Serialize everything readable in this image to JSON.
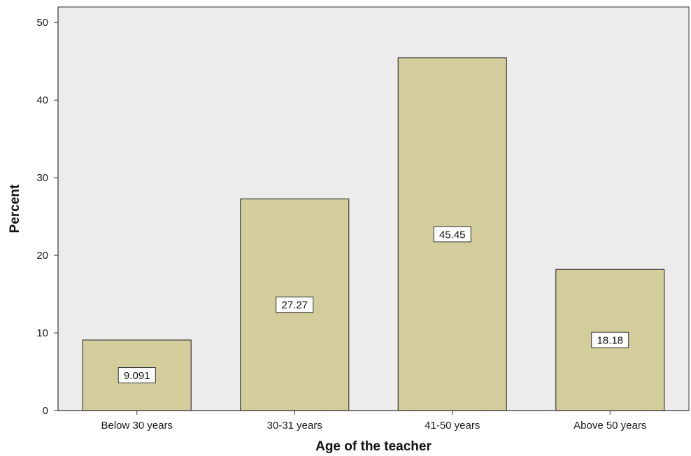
{
  "chart_data": {
    "type": "bar",
    "title": "",
    "xlabel": "Age of the teacher",
    "ylabel": "Percent",
    "categories": [
      "Below 30 years",
      "30-31 years",
      "41-50 years",
      "Above 50 years"
    ],
    "values": [
      9.091,
      27.27,
      45.45,
      18.18
    ],
    "value_labels": [
      "9.091",
      "27.27",
      "45.45",
      "18.18"
    ],
    "ylim": [
      0,
      52
    ],
    "yticks": [
      0,
      10,
      20,
      30,
      40,
      50
    ],
    "ytick_labels": [
      "0",
      "10",
      "20",
      "30",
      "40",
      "50"
    ],
    "grid": false,
    "legend": "none"
  },
  "colors": {
    "plot_background": "#ececec",
    "bar_fill": "#d3cd9b",
    "bar_stroke": "#3a3a3a",
    "axis": "#333333",
    "label_box_fill": "#ffffff"
  }
}
